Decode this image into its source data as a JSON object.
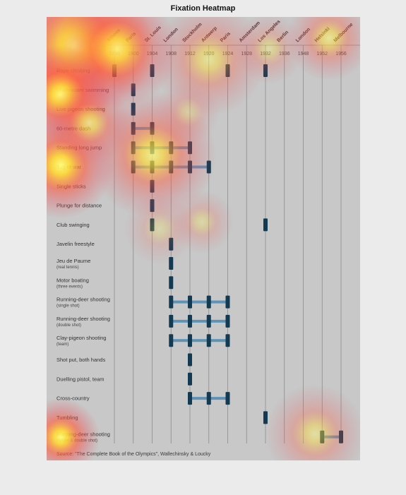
{
  "title": "Fixation Heatmap",
  "chart_data": {
    "type": "timeline",
    "title": "Fixation Heatmap",
    "years": [
      "1896",
      "1900",
      "1904",
      "1908",
      "1912",
      "1920",
      "1924",
      "1928",
      "1932",
      "1936",
      "1948",
      "1952",
      "1956"
    ],
    "cities": [
      "Athens",
      "Paris",
      "St. Louis",
      "London",
      "Stockholm",
      "Antwerp",
      "Paris",
      "Amsterdam",
      "Los Angeles",
      "Berlin",
      "London",
      "Helsinki",
      "Melbourne"
    ],
    "events": [
      {
        "name": "Rope climbing",
        "sub": "",
        "years": [
          "1896",
          "1904",
          "1924",
          "1932"
        ],
        "links": []
      },
      {
        "name": "Underwater swimming",
        "sub": "",
        "years": [
          "1900"
        ],
        "links": []
      },
      {
        "name": "Live pigeon shooting",
        "sub": "",
        "years": [
          "1900"
        ],
        "links": []
      },
      {
        "name": "60-metre dash",
        "sub": "",
        "years": [
          "1900",
          "1904"
        ],
        "links": [
          [
            "1900",
            "1904"
          ]
        ]
      },
      {
        "name": "Standing long jump",
        "sub": "",
        "years": [
          "1900",
          "1904",
          "1908",
          "1912"
        ],
        "links": [
          [
            "1900",
            "1912"
          ]
        ]
      },
      {
        "name": "Tug of war",
        "sub": "",
        "years": [
          "1900",
          "1904",
          "1908",
          "1912",
          "1920"
        ],
        "links": [
          [
            "1900",
            "1920"
          ]
        ]
      },
      {
        "name": "Single sticks",
        "sub": "",
        "years": [
          "1904"
        ],
        "links": []
      },
      {
        "name": "Plunge for distance",
        "sub": "",
        "years": [
          "1904"
        ],
        "links": []
      },
      {
        "name": "Club swinging",
        "sub": "",
        "years": [
          "1904",
          "1932"
        ],
        "links": []
      },
      {
        "name": "Javelin freestyle",
        "sub": "",
        "years": [
          "1908"
        ],
        "links": []
      },
      {
        "name": "Jeu de Paume",
        "sub": "(real tennis)",
        "years": [
          "1908"
        ],
        "links": []
      },
      {
        "name": "Motor boating",
        "sub": "(three events)",
        "years": [
          "1908"
        ],
        "links": []
      },
      {
        "name": "Running-deer shooting",
        "sub": "(single shot)",
        "years": [
          "1908",
          "1912",
          "1920",
          "1924"
        ],
        "links": [
          [
            "1908",
            "1924"
          ]
        ]
      },
      {
        "name": "Running-deer shooting",
        "sub": "(double shot)",
        "years": [
          "1908",
          "1912",
          "1920",
          "1924"
        ],
        "links": [
          [
            "1908",
            "1924"
          ]
        ]
      },
      {
        "name": "Clay-pigeon shooting",
        "sub": "(team)",
        "years": [
          "1908",
          "1912",
          "1920",
          "1924"
        ],
        "links": [
          [
            "1908",
            "1924"
          ]
        ]
      },
      {
        "name": "Shot put, both hands",
        "sub": "",
        "years": [
          "1912"
        ],
        "links": []
      },
      {
        "name": "Duelling pistol, team",
        "sub": "",
        "years": [
          "1912"
        ],
        "links": []
      },
      {
        "name": "Cross-country",
        "sub": "",
        "years": [
          "1912",
          "1920",
          "1924"
        ],
        "links": [
          [
            "1912",
            "1924"
          ]
        ]
      },
      {
        "name": "Tumbling",
        "sub": "",
        "years": [
          "1932"
        ],
        "links": []
      },
      {
        "name": "Running-deer shooting",
        "sub": "(single & double shot)",
        "years": [
          "1952",
          "1956"
        ],
        "links": [
          [
            "1952",
            "1956"
          ]
        ]
      }
    ],
    "source": "Source: \"The Complete Book of the Olympics\", Wallechinsky & Loucky",
    "colors": {
      "marker": "#123a52",
      "link": "#5e93b8",
      "grid": "#8c8c8c"
    }
  }
}
